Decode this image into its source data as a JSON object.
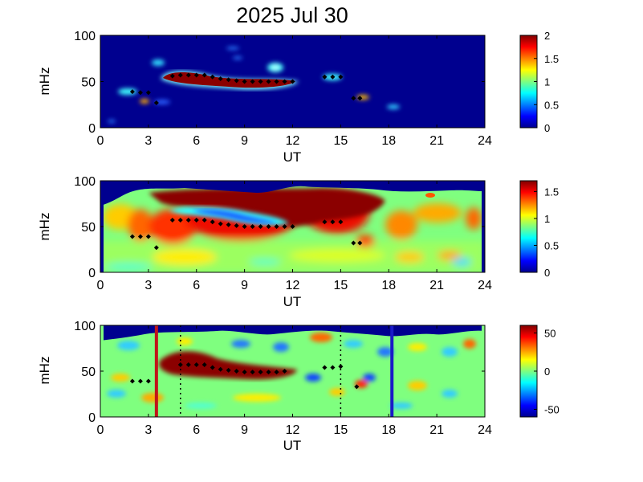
{
  "title": "2025 Jul 30",
  "chart_data": [
    {
      "type": "heatmap",
      "xlabel": "UT",
      "ylabel": "mHz",
      "xlim": [
        0,
        24
      ],
      "ylim": [
        0,
        100
      ],
      "xticks": [
        "0",
        "3",
        "6",
        "9",
        "12",
        "15",
        "18",
        "21",
        "24"
      ],
      "yticks": [
        "0",
        "50",
        "100"
      ],
      "data_range_ut": [
        1,
        23
      ],
      "colorbar": {
        "min": 0,
        "max": 2,
        "ticks": [
          "0",
          "0.5",
          "1",
          "1.5",
          "2"
        ]
      },
      "peak_ridge": [
        {
          "ut": 2.0,
          "mhz": 39
        },
        {
          "ut": 2.5,
          "mhz": 38
        },
        {
          "ut": 3.0,
          "mhz": 38
        },
        {
          "ut": 3.5,
          "mhz": 27
        },
        {
          "ut": 4.5,
          "mhz": 56
        },
        {
          "ut": 5.0,
          "mhz": 57
        },
        {
          "ut": 5.5,
          "mhz": 57
        },
        {
          "ut": 6.0,
          "mhz": 57
        },
        {
          "ut": 6.5,
          "mhz": 57
        },
        {
          "ut": 7.0,
          "mhz": 55
        },
        {
          "ut": 7.5,
          "mhz": 53
        },
        {
          "ut": 8.0,
          "mhz": 52
        },
        {
          "ut": 8.5,
          "mhz": 51
        },
        {
          "ut": 9.0,
          "mhz": 50
        },
        {
          "ut": 9.5,
          "mhz": 50
        },
        {
          "ut": 10.0,
          "mhz": 50
        },
        {
          "ut": 10.5,
          "mhz": 50
        },
        {
          "ut": 11.0,
          "mhz": 50
        },
        {
          "ut": 11.5,
          "mhz": 50
        },
        {
          "ut": 12.0,
          "mhz": 50
        },
        {
          "ut": 14.0,
          "mhz": 55
        },
        {
          "ut": 14.5,
          "mhz": 55
        },
        {
          "ut": 15.0,
          "mhz": 55
        },
        {
          "ut": 15.8,
          "mhz": 32
        },
        {
          "ut": 16.2,
          "mhz": 32
        }
      ]
    },
    {
      "type": "heatmap",
      "xlabel": "UT",
      "ylabel": "mHz",
      "xlim": [
        0,
        24
      ],
      "ylim": [
        0,
        100
      ],
      "xticks": [
        "0",
        "3",
        "6",
        "9",
        "12",
        "15",
        "18",
        "21",
        "24"
      ],
      "yticks": [
        "0",
        "50",
        "100"
      ],
      "data_range_ut": [
        1,
        23
      ],
      "colorbar": {
        "min": 0,
        "max": 1.7,
        "ticks": [
          "0",
          "0.5",
          "1",
          "1.5"
        ]
      },
      "peak_ridge": [
        {
          "ut": 2.0,
          "mhz": 39
        },
        {
          "ut": 2.5,
          "mhz": 39
        },
        {
          "ut": 3.0,
          "mhz": 39
        },
        {
          "ut": 3.5,
          "mhz": 27
        },
        {
          "ut": 4.5,
          "mhz": 57
        },
        {
          "ut": 5.0,
          "mhz": 57
        },
        {
          "ut": 5.5,
          "mhz": 57
        },
        {
          "ut": 6.0,
          "mhz": 57
        },
        {
          "ut": 6.5,
          "mhz": 57
        },
        {
          "ut": 7.0,
          "mhz": 55
        },
        {
          "ut": 7.5,
          "mhz": 53
        },
        {
          "ut": 8.0,
          "mhz": 52
        },
        {
          "ut": 8.5,
          "mhz": 51
        },
        {
          "ut": 9.0,
          "mhz": 50
        },
        {
          "ut": 9.5,
          "mhz": 50
        },
        {
          "ut": 10.0,
          "mhz": 50
        },
        {
          "ut": 10.5,
          "mhz": 50
        },
        {
          "ut": 11.0,
          "mhz": 50
        },
        {
          "ut": 11.5,
          "mhz": 50
        },
        {
          "ut": 12.0,
          "mhz": 50
        },
        {
          "ut": 14.0,
          "mhz": 55
        },
        {
          "ut": 14.5,
          "mhz": 55
        },
        {
          "ut": 15.0,
          "mhz": 55
        },
        {
          "ut": 15.8,
          "mhz": 32
        },
        {
          "ut": 16.2,
          "mhz": 32
        }
      ]
    },
    {
      "type": "heatmap",
      "xlabel": "UT",
      "ylabel": "mHz",
      "xlim": [
        0,
        24
      ],
      "ylim": [
        0,
        100
      ],
      "xticks": [
        "0",
        "3",
        "6",
        "9",
        "12",
        "15",
        "18",
        "21",
        "24"
      ],
      "yticks": [
        "0",
        "50",
        "100"
      ],
      "data_range_ut": [
        1,
        23
      ],
      "colorbar": {
        "min": -60,
        "max": 60,
        "ticks": [
          "-50",
          "0",
          "50"
        ]
      },
      "vertical_markers": [
        {
          "ut": 3.5,
          "color": "#c0151a",
          "style": "solid"
        },
        {
          "ut": 5.0,
          "color": "#000000",
          "style": "dotted"
        },
        {
          "ut": 15.0,
          "color": "#000000",
          "style": "dotted"
        },
        {
          "ut": 18.2,
          "color": "#1a1ac8",
          "style": "solid"
        }
      ],
      "peak_ridge": [
        {
          "ut": 2.0,
          "mhz": 39
        },
        {
          "ut": 2.5,
          "mhz": 39
        },
        {
          "ut": 3.0,
          "mhz": 39
        },
        {
          "ut": 5.0,
          "mhz": 57
        },
        {
          "ut": 5.5,
          "mhz": 57
        },
        {
          "ut": 6.0,
          "mhz": 57
        },
        {
          "ut": 6.5,
          "mhz": 57
        },
        {
          "ut": 7.0,
          "mhz": 54
        },
        {
          "ut": 7.5,
          "mhz": 52
        },
        {
          "ut": 8.0,
          "mhz": 51
        },
        {
          "ut": 8.5,
          "mhz": 50
        },
        {
          "ut": 9.0,
          "mhz": 49
        },
        {
          "ut": 9.5,
          "mhz": 49
        },
        {
          "ut": 10.0,
          "mhz": 49
        },
        {
          "ut": 10.5,
          "mhz": 49
        },
        {
          "ut": 11.0,
          "mhz": 49
        },
        {
          "ut": 11.5,
          "mhz": 50
        },
        {
          "ut": 14.0,
          "mhz": 54
        },
        {
          "ut": 14.5,
          "mhz": 54
        },
        {
          "ut": 15.0,
          "mhz": 55
        },
        {
          "ut": 16.0,
          "mhz": 33
        }
      ]
    }
  ]
}
